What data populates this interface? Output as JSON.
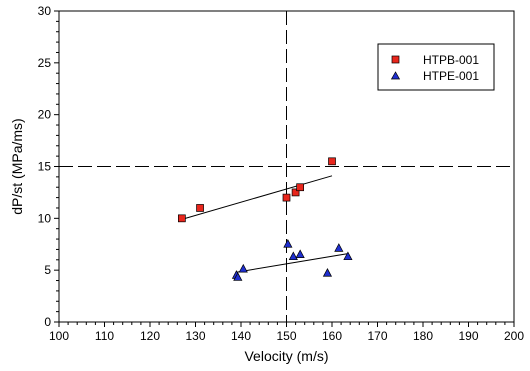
{
  "chart_data": {
    "type": "scatter",
    "title": "",
    "xlabel": "Velocity (m/s)",
    "ylabel": "dP/st (MPa/ms)",
    "xlim": [
      100,
      200
    ],
    "ylim": [
      0,
      30
    ],
    "x_ticks": [
      "100",
      "110",
      "120",
      "130",
      "140",
      "150",
      "160",
      "170",
      "180",
      "190",
      "200"
    ],
    "y_ticks": [
      "0",
      "5",
      "10",
      "15",
      "20",
      "25",
      "30"
    ],
    "grid": false,
    "legend_position": "top-right",
    "reference_lines": {
      "vertical_x": 150,
      "horizontal_y": 15,
      "style": "dashed"
    },
    "series": [
      {
        "name": "HTPB-001",
        "marker": "square",
        "color": "#e8261c",
        "points": [
          [
            127,
            10.0
          ],
          [
            131,
            11.0
          ],
          [
            150,
            12.0
          ],
          [
            152,
            12.5
          ],
          [
            153,
            13.0
          ],
          [
            160,
            15.5
          ]
        ],
        "fit": {
          "x": [
            127,
            160
          ],
          "y": [
            9.9,
            14.1
          ]
        }
      },
      {
        "name": "HTPE-001",
        "marker": "triangle",
        "color": "#1f2fd0",
        "points": [
          [
            139,
            4.5
          ],
          [
            139.3,
            4.3
          ],
          [
            140.5,
            5.1
          ],
          [
            150.3,
            7.5
          ],
          [
            151.5,
            6.3
          ],
          [
            153,
            6.5
          ],
          [
            159,
            4.7
          ],
          [
            161.5,
            7.1
          ],
          [
            163.5,
            6.3
          ]
        ],
        "fit": {
          "x": [
            139,
            163.5
          ],
          "y": [
            4.8,
            6.6
          ]
        }
      }
    ]
  }
}
